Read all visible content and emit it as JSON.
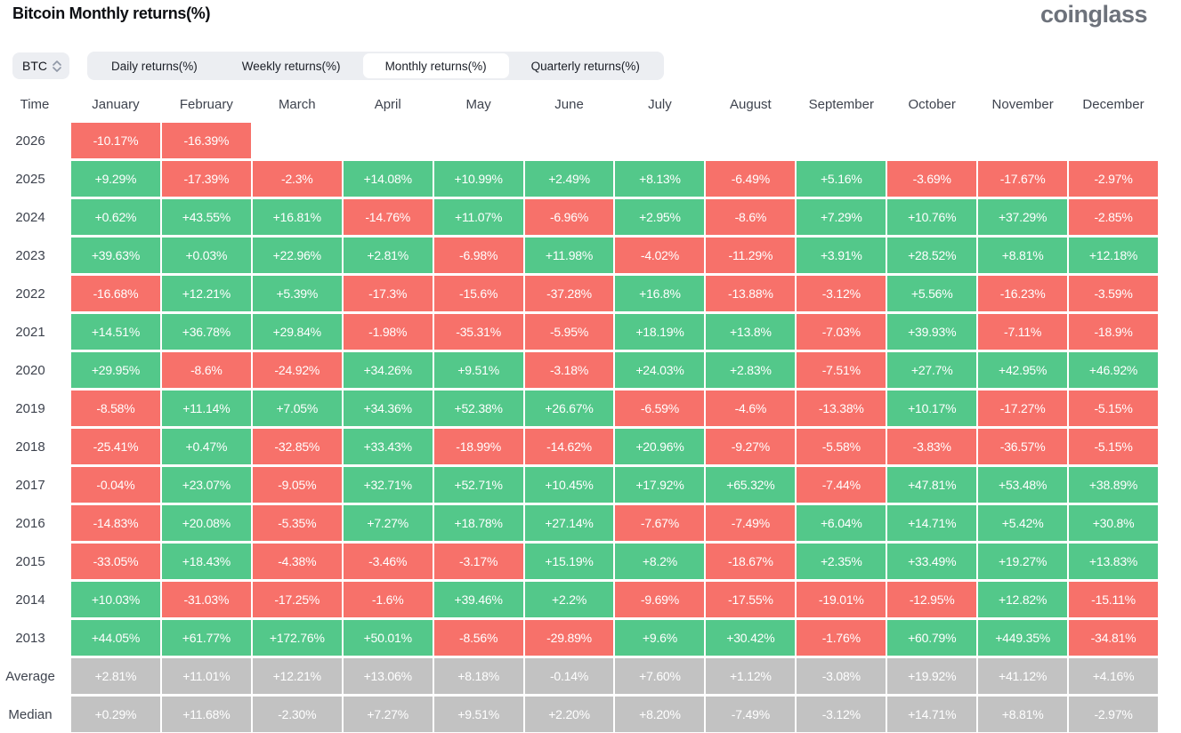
{
  "header": {
    "title": "Bitcoin Monthly returns(%)",
    "logo": "coinglass"
  },
  "controls": {
    "coin_selector": {
      "value": "BTC",
      "icon": "updown-chevron-icon"
    },
    "tabs": [
      {
        "label": "Daily returns(%)",
        "selected": false
      },
      {
        "label": "Weekly returns(%)",
        "selected": false
      },
      {
        "label": "Monthly returns(%)",
        "selected": true
      },
      {
        "label": "Quarterly returns(%)",
        "selected": false
      }
    ]
  },
  "table": {
    "colors": {
      "positive": "#53c88a",
      "negative": "#f7716a",
      "summary": "#c2c2c2"
    },
    "columns": [
      "Time",
      "January",
      "February",
      "March",
      "April",
      "May",
      "June",
      "July",
      "August",
      "September",
      "October",
      "November",
      "December"
    ],
    "rows": [
      {
        "label": "2026",
        "summary": false,
        "cells": [
          "-10.17%",
          "-16.39%",
          "",
          "",
          "",
          "",
          "",
          "",
          "",
          "",
          "",
          ""
        ]
      },
      {
        "label": "2025",
        "summary": false,
        "cells": [
          "+9.29%",
          "-17.39%",
          "-2.3%",
          "+14.08%",
          "+10.99%",
          "+2.49%",
          "+8.13%",
          "-6.49%",
          "+5.16%",
          "-3.69%",
          "-17.67%",
          "-2.97%"
        ]
      },
      {
        "label": "2024",
        "summary": false,
        "cells": [
          "+0.62%",
          "+43.55%",
          "+16.81%",
          "-14.76%",
          "+11.07%",
          "-6.96%",
          "+2.95%",
          "-8.6%",
          "+7.29%",
          "+10.76%",
          "+37.29%",
          "-2.85%"
        ]
      },
      {
        "label": "2023",
        "summary": false,
        "cells": [
          "+39.63%",
          "+0.03%",
          "+22.96%",
          "+2.81%",
          "-6.98%",
          "+11.98%",
          "-4.02%",
          "-11.29%",
          "+3.91%",
          "+28.52%",
          "+8.81%",
          "+12.18%"
        ]
      },
      {
        "label": "2022",
        "summary": false,
        "cells": [
          "-16.68%",
          "+12.21%",
          "+5.39%",
          "-17.3%",
          "-15.6%",
          "-37.28%",
          "+16.8%",
          "-13.88%",
          "-3.12%",
          "+5.56%",
          "-16.23%",
          "-3.59%"
        ]
      },
      {
        "label": "2021",
        "summary": false,
        "cells": [
          "+14.51%",
          "+36.78%",
          "+29.84%",
          "-1.98%",
          "-35.31%",
          "-5.95%",
          "+18.19%",
          "+13.8%",
          "-7.03%",
          "+39.93%",
          "-7.11%",
          "-18.9%"
        ]
      },
      {
        "label": "2020",
        "summary": false,
        "cells": [
          "+29.95%",
          "-8.6%",
          "-24.92%",
          "+34.26%",
          "+9.51%",
          "-3.18%",
          "+24.03%",
          "+2.83%",
          "-7.51%",
          "+27.7%",
          "+42.95%",
          "+46.92%"
        ]
      },
      {
        "label": "2019",
        "summary": false,
        "cells": [
          "-8.58%",
          "+11.14%",
          "+7.05%",
          "+34.36%",
          "+52.38%",
          "+26.67%",
          "-6.59%",
          "-4.6%",
          "-13.38%",
          "+10.17%",
          "-17.27%",
          "-5.15%"
        ]
      },
      {
        "label": "2018",
        "summary": false,
        "cells": [
          "-25.41%",
          "+0.47%",
          "-32.85%",
          "+33.43%",
          "-18.99%",
          "-14.62%",
          "+20.96%",
          "-9.27%",
          "-5.58%",
          "-3.83%",
          "-36.57%",
          "-5.15%"
        ]
      },
      {
        "label": "2017",
        "summary": false,
        "cells": [
          "-0.04%",
          "+23.07%",
          "-9.05%",
          "+32.71%",
          "+52.71%",
          "+10.45%",
          "+17.92%",
          "+65.32%",
          "-7.44%",
          "+47.81%",
          "+53.48%",
          "+38.89%"
        ]
      },
      {
        "label": "2016",
        "summary": false,
        "cells": [
          "-14.83%",
          "+20.08%",
          "-5.35%",
          "+7.27%",
          "+18.78%",
          "+27.14%",
          "-7.67%",
          "-7.49%",
          "+6.04%",
          "+14.71%",
          "+5.42%",
          "+30.8%"
        ]
      },
      {
        "label": "2015",
        "summary": false,
        "cells": [
          "-33.05%",
          "+18.43%",
          "-4.38%",
          "-3.46%",
          "-3.17%",
          "+15.19%",
          "+8.2%",
          "-18.67%",
          "+2.35%",
          "+33.49%",
          "+19.27%",
          "+13.83%"
        ]
      },
      {
        "label": "2014",
        "summary": false,
        "cells": [
          "+10.03%",
          "-31.03%",
          "-17.25%",
          "-1.6%",
          "+39.46%",
          "+2.2%",
          "-9.69%",
          "-17.55%",
          "-19.01%",
          "-12.95%",
          "+12.82%",
          "-15.11%"
        ]
      },
      {
        "label": "2013",
        "summary": false,
        "cells": [
          "+44.05%",
          "+61.77%",
          "+172.76%",
          "+50.01%",
          "-8.56%",
          "-29.89%",
          "+9.6%",
          "+30.42%",
          "-1.76%",
          "+60.79%",
          "+449.35%",
          "-34.81%"
        ]
      },
      {
        "label": "Average",
        "summary": true,
        "cells": [
          "+2.81%",
          "+11.01%",
          "+12.21%",
          "+13.06%",
          "+8.18%",
          "-0.14%",
          "+7.60%",
          "+1.12%",
          "-3.08%",
          "+19.92%",
          "+41.12%",
          "+4.16%"
        ]
      },
      {
        "label": "Median",
        "summary": true,
        "cells": [
          "+0.29%",
          "+11.68%",
          "-2.30%",
          "+7.27%",
          "+9.51%",
          "+2.20%",
          "+8.20%",
          "-7.49%",
          "-3.12%",
          "+14.71%",
          "+8.81%",
          "-2.97%"
        ]
      }
    ]
  }
}
